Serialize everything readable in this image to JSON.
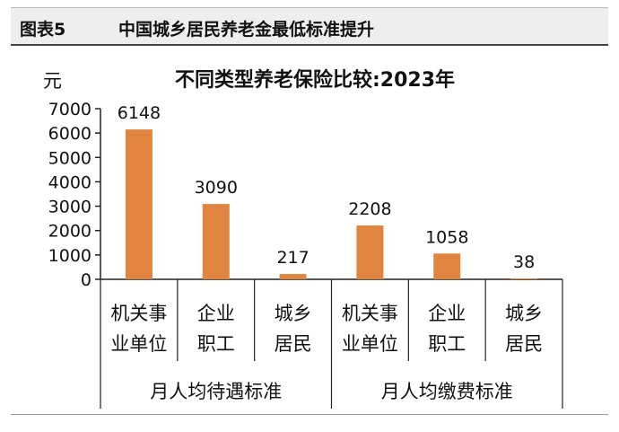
{
  "header": {
    "figure_label": "图表5",
    "title": "中国城乡居民养老金最低标准提升"
  },
  "chart_data": {
    "type": "bar",
    "title": "不同类型养老保险比较:2023年",
    "ylabel": "元",
    "ylim": [
      0,
      7000
    ],
    "yticks": [
      0,
      1000,
      2000,
      3000,
      4000,
      5000,
      6000,
      7000
    ],
    "grid": false,
    "legend": "none",
    "bar_color": "#E0843F",
    "categories": [
      {
        "line1": "机关事",
        "line2": "业单位"
      },
      {
        "line1": "企业",
        "line2": "职工"
      },
      {
        "line1": "城乡",
        "line2": "居民"
      },
      {
        "line1": "机关事",
        "line2": "业单位"
      },
      {
        "line1": "企业",
        "line2": "职工"
      },
      {
        "line1": "城乡",
        "line2": "居民"
      }
    ],
    "groups": [
      {
        "label": "月人均待遇标准",
        "start": 0,
        "count": 3
      },
      {
        "label": "月人均缴费标准",
        "start": 3,
        "count": 3
      }
    ],
    "values": [
      6148,
      3090,
      217,
      2208,
      1058,
      38
    ],
    "data_labels": [
      "6148",
      "3090",
      "217",
      "2208",
      "1058",
      "38"
    ]
  }
}
